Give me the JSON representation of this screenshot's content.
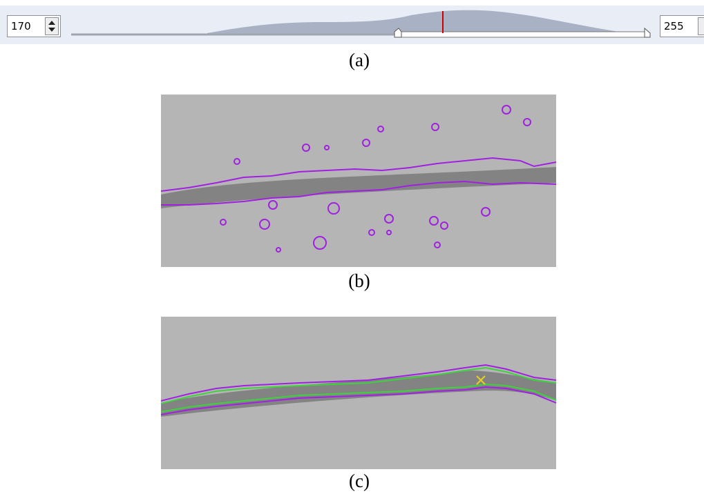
{
  "toolbar": {
    "min_value": 170,
    "max_value": 255
  },
  "captions": [
    "(a)",
    "(b)",
    "(c)"
  ]
}
